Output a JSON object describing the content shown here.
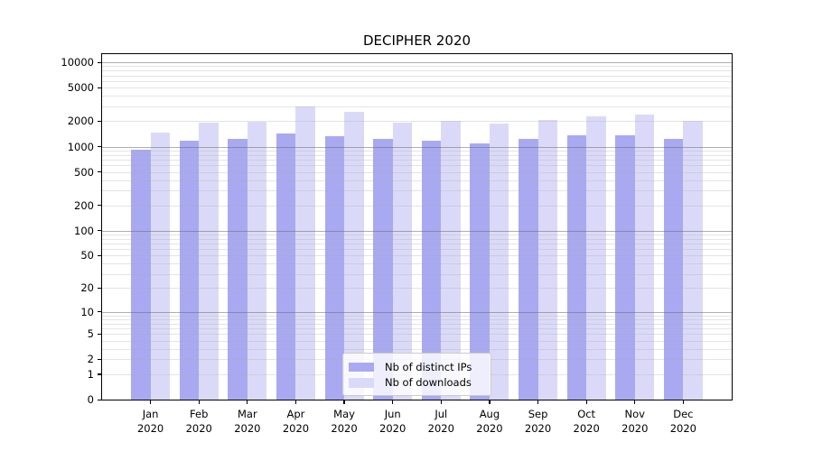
{
  "chart_data": {
    "type": "bar",
    "title": "DECIPHER 2020",
    "categories": [
      "Jan",
      "Feb",
      "Mar",
      "Apr",
      "May",
      "Jun",
      "Jul",
      "Aug",
      "Sep",
      "Oct",
      "Nov",
      "Dec"
    ],
    "category_year": "2020",
    "series": [
      {
        "name": "Nb of distinct IPs",
        "color": "#a9a9f2",
        "values": [
          915,
          1170,
          1230,
          1450,
          1330,
          1230,
          1190,
          1080,
          1250,
          1360,
          1360,
          1230
        ]
      },
      {
        "name": "Nb of downloads",
        "color": "#dadaf8",
        "values": [
          1480,
          1920,
          1960,
          2970,
          2560,
          1920,
          2030,
          1900,
          2100,
          2280,
          2410,
          2000
        ]
      }
    ],
    "xlabel": "",
    "ylabel": "",
    "yscale": "symlog (log10 of value+1), 0 at baseline",
    "y_tick_values": [
      0,
      1,
      2,
      5,
      10,
      20,
      50,
      100,
      200,
      500,
      1000,
      2000,
      5000,
      10000
    ],
    "ylim": [
      0,
      12600
    ],
    "grid": "both major and minor horizontal gridlines, drawn over bars",
    "legend_position": "inside lower-center",
    "colors": {
      "major_grid": "#6e6e6e",
      "minor_grid": "#aaaaaa",
      "axis": "#000000",
      "background": "#ffffff"
    }
  },
  "legend": {
    "items": [
      {
        "label": "Nb of distinct IPs"
      },
      {
        "label": "Nb of downloads"
      }
    ]
  }
}
